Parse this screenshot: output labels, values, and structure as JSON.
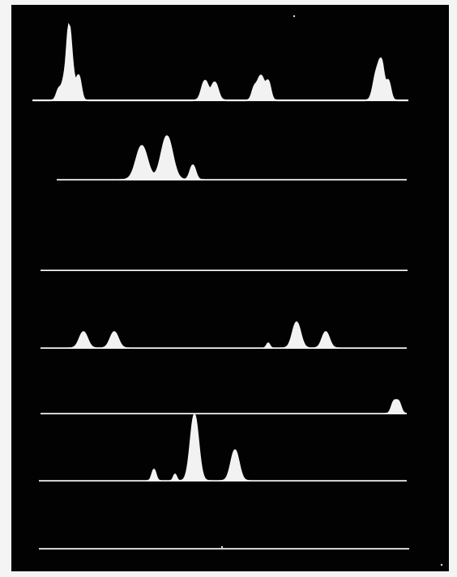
{
  "image": {
    "description_free": true,
    "background_color": "#020202",
    "frame_color": "#f4f4f4",
    "trace_color": "#f2f2f2",
    "trace_count": 7
  }
}
